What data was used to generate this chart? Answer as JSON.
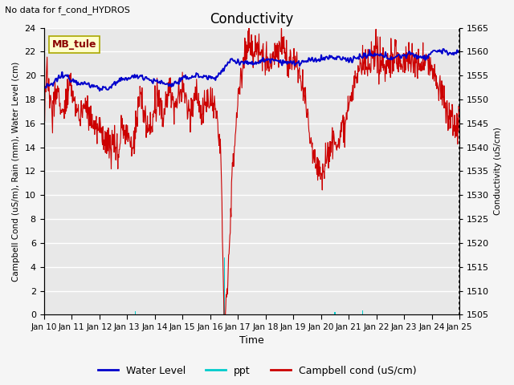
{
  "title": "Conductivity",
  "top_left_text": "No data for f_cond_HYDROS",
  "site_label": "MB_tule",
  "xlabel": "Time",
  "ylabel_left": "Campbell Cond (uS/m), Rain (mm), Water Level (cm)",
  "ylabel_right": "Conductivity (uS/cm)",
  "xlim": [
    0,
    15.0
  ],
  "ylim_left": [
    0,
    24
  ],
  "ylim_right": [
    1505,
    1565
  ],
  "yticks_left": [
    0,
    2,
    4,
    6,
    8,
    10,
    12,
    14,
    16,
    18,
    20,
    22,
    24
  ],
  "yticks_right": [
    1505,
    1510,
    1515,
    1520,
    1525,
    1530,
    1535,
    1540,
    1545,
    1550,
    1555,
    1560,
    1565
  ],
  "xtick_labels": [
    "Jan 10",
    "Jan 11",
    "Jan 12",
    "Jan 13",
    "Jan 14",
    "Jan 15",
    "Jan 16",
    "Jan 17",
    "Jan 18",
    "Jan 19",
    "Jan 20",
    "Jan 21",
    "Jan 22",
    "Jan 23",
    "Jan 24",
    "Jan 25"
  ],
  "bg_color": "#e8e8e8",
  "grid_color": "#ffffff",
  "water_level_color": "#0000cc",
  "ppt_color": "#00cccc",
  "campbell_color": "#cc0000",
  "legend_labels": [
    "Water Level",
    "ppt",
    "Campbell cond (uS/cm)"
  ],
  "figsize": [
    6.4,
    4.8
  ],
  "dpi": 100
}
